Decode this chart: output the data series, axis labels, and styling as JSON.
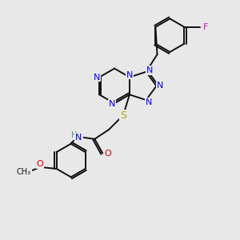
{
  "background_color": "#e8e8e8",
  "atom_colors": {
    "N": "#0000ee",
    "O": "#dd0000",
    "S": "#aaaa00",
    "F": "#dd00dd",
    "H": "#448888",
    "C": "#111111"
  },
  "bond_color": "#111111",
  "figsize": [
    3.0,
    3.0
  ],
  "dpi": 100,
  "lw": 1.4,
  "fs": 7.5
}
